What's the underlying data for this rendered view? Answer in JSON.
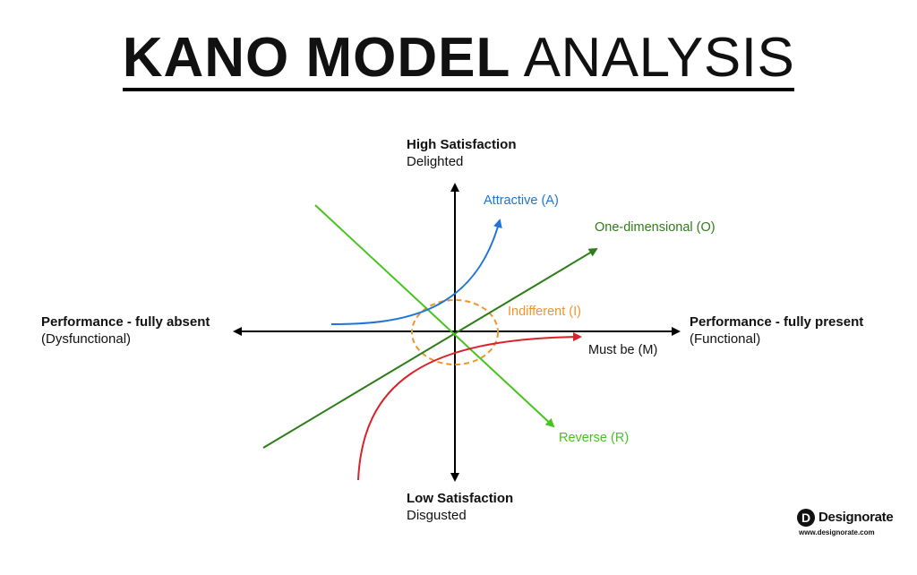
{
  "title": {
    "bold": "KANO MODEL",
    "light": "ANALYSIS"
  },
  "axes": {
    "top": {
      "label": "High Satisfaction",
      "sub": "Delighted"
    },
    "bottom": {
      "label": "Low Satisfaction",
      "sub": "Disgusted"
    },
    "left": {
      "label": "Performance - fully absent",
      "sub": "(Dysfunctional)"
    },
    "right": {
      "label": "Performance - fully present",
      "sub": "(Functional)"
    }
  },
  "categories": {
    "attractive": {
      "label": "Attractive (A)",
      "color": "#1f74d8"
    },
    "one_dimensional": {
      "label": "One-dimensional (O)",
      "color": "#2e7d18"
    },
    "indifferent": {
      "label": "Indifferent (I)",
      "color": "#f0952a"
    },
    "must_be": {
      "label": "Must be (M)",
      "color": "#d9232b"
    },
    "reverse": {
      "label": "Reverse (R)",
      "color": "#46c41e"
    }
  },
  "brand": {
    "mark": "D",
    "name": "Designorate",
    "url": "www.designorate.com"
  }
}
